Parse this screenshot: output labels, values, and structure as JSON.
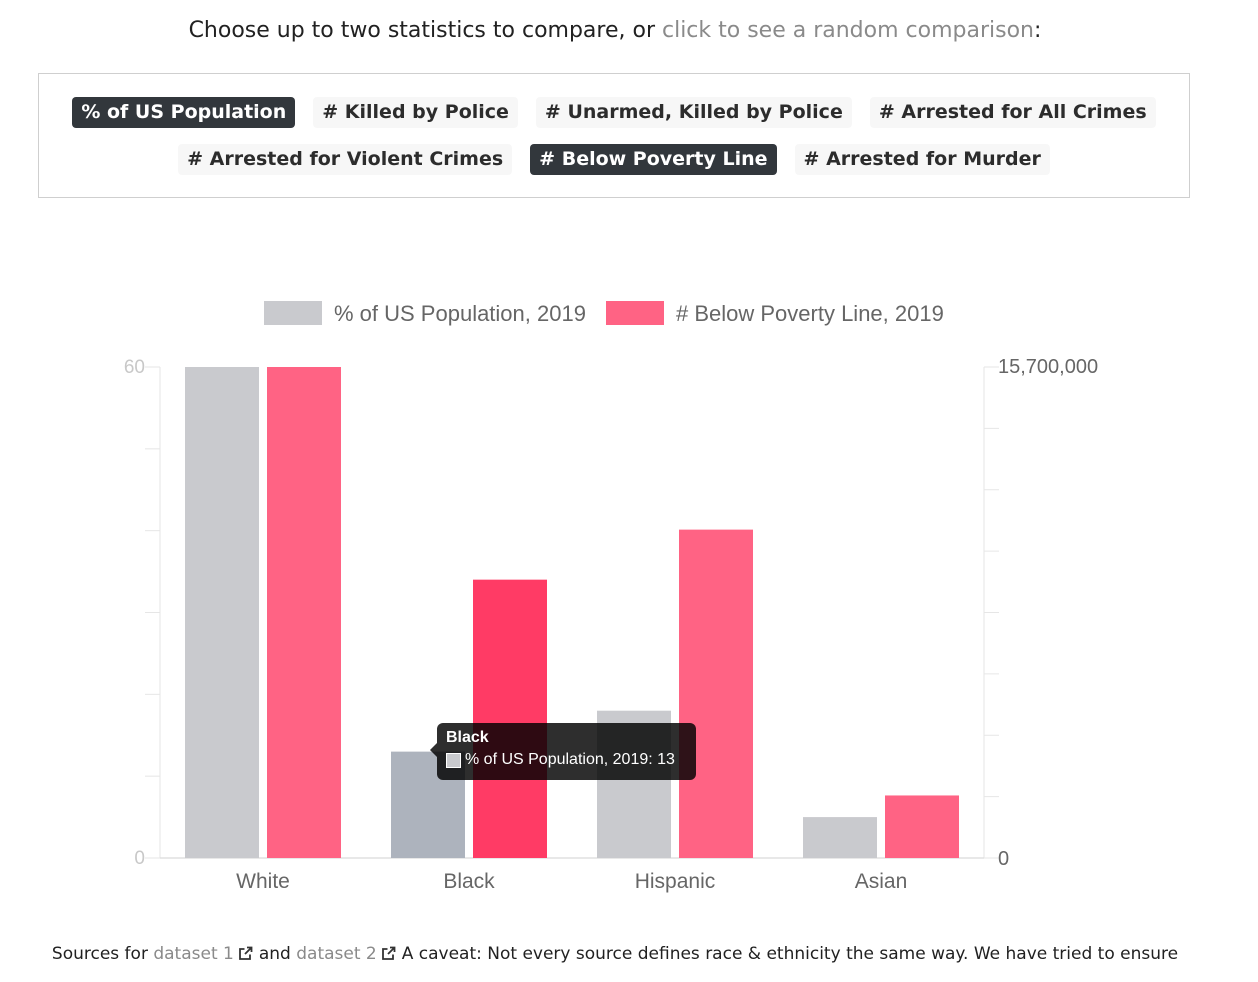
{
  "header": {
    "intro_before": "Choose up to two statistics to compare, or ",
    "intro_link": "click to see a random comparison",
    "intro_after": ":"
  },
  "stats": {
    "row1": [
      {
        "label": "% of US Population",
        "active": true
      },
      {
        "label": "# Killed by Police",
        "active": false
      },
      {
        "label": "# Unarmed, Killed by Police",
        "active": false
      },
      {
        "label": "# Arrested for All Crimes",
        "active": false
      }
    ],
    "row2": [
      {
        "label": "# Arrested for Violent Crimes",
        "active": false
      },
      {
        "label": "# Below Poverty Line",
        "active": true
      },
      {
        "label": "# Arrested for Murder",
        "active": false
      }
    ]
  },
  "chart_data": {
    "type": "bar",
    "categories": [
      "White",
      "Black",
      "Hispanic",
      "Asian"
    ],
    "series": [
      {
        "name": "% of US Population, 2019",
        "values": [
          60,
          13,
          18,
          5
        ],
        "axis": "left",
        "color": "#c9cace",
        "hover_color": "#adb3bd"
      },
      {
        "name": "# Below Poverty Line, 2019",
        "values": [
          15700000,
          8900000,
          10500000,
          2000000
        ],
        "axis": "right",
        "color": "#ff6384",
        "hover_color": "#ff3b65"
      }
    ],
    "y_left": {
      "min": 0,
      "max": 60,
      "tick_labels": [
        "60",
        "0"
      ]
    },
    "y_right": {
      "min": 0,
      "max": 15700000,
      "tick_labels": [
        "15,700,000",
        "0"
      ]
    },
    "legend_position": "top",
    "hovered_category": "Black",
    "grid": false
  },
  "tooltip": {
    "title": "Black",
    "line": "% of US Population, 2019: 13",
    "swatch_color": "#c9cace"
  },
  "footer": {
    "sources_prefix": "Sources for ",
    "dataset1": "dataset 1",
    "and_text": "and ",
    "dataset2": "dataset 2",
    "caveat": "A caveat: Not every source defines race & ethnicity the same way. We have tried to ensure"
  }
}
